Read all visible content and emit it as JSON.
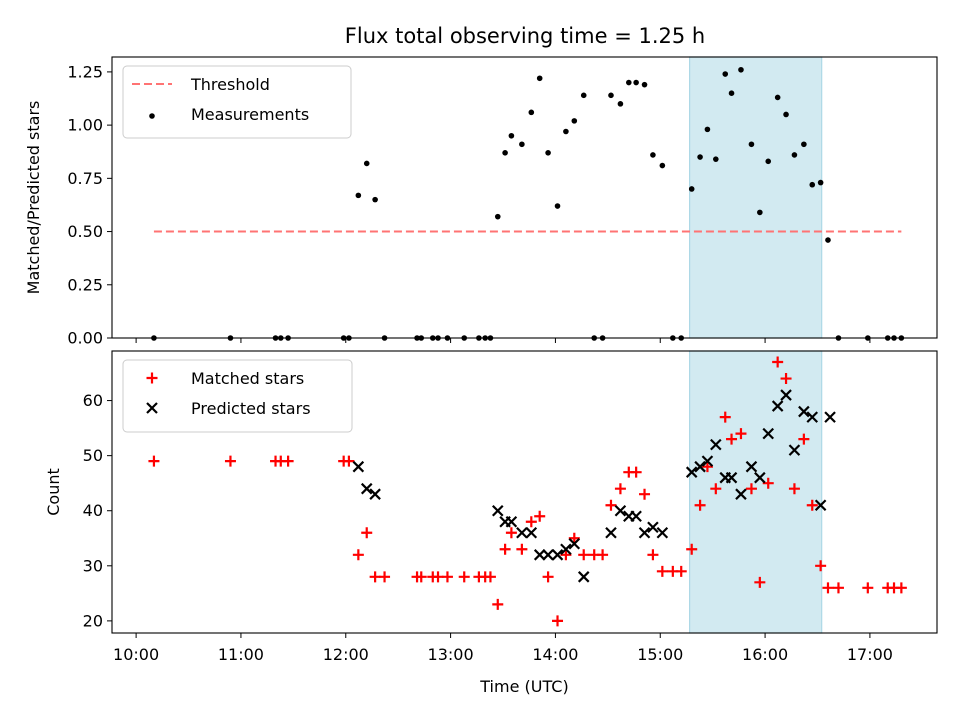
{
  "figure_title": "Flux total observing time = 1.25 h",
  "colors": {
    "threshold": "#ff7373",
    "measurement": "#000000",
    "matched": "#ff0000",
    "predicted": "#000000",
    "highlight": "#add8e6"
  },
  "chart_data": [
    {
      "type": "scatter",
      "title": "Flux total observing time = 1.25 h",
      "xlabel": "",
      "ylabel": "Matched/Predicted stars",
      "xlim": [
        9.77,
        17.64
      ],
      "ylim": [
        0.0,
        1.32
      ],
      "grid": false,
      "legend_position": "top-left",
      "x_ticks": [
        10,
        11,
        12,
        13,
        14,
        15,
        16,
        17
      ],
      "x_tick_labels_shown": false,
      "y_ticks": [
        0.0,
        0.25,
        0.5,
        0.75,
        1.0,
        1.25
      ],
      "y_tick_labels": [
        "0.00",
        "0.25",
        "0.50",
        "0.75",
        "1.00",
        "1.25"
      ],
      "highlight_span": [
        15.28,
        16.54
      ],
      "threshold": {
        "name": "Threshold",
        "value": 0.5,
        "x_range": [
          10.17,
          17.3
        ],
        "style": "dashed"
      },
      "series": [
        {
          "name": "Measurements",
          "marker": "dot",
          "points": [
            [
              10.17,
              0.0
            ],
            [
              10.9,
              0.0
            ],
            [
              11.33,
              0.0
            ],
            [
              11.38,
              0.0
            ],
            [
              11.45,
              0.0
            ],
            [
              11.98,
              0.0
            ],
            [
              12.03,
              0.0
            ],
            [
              12.12,
              0.67
            ],
            [
              12.2,
              0.82
            ],
            [
              12.28,
              0.65
            ],
            [
              12.37,
              0.0
            ],
            [
              12.68,
              0.0
            ],
            [
              12.72,
              0.0
            ],
            [
              12.83,
              0.0
            ],
            [
              12.88,
              0.0
            ],
            [
              12.97,
              0.0
            ],
            [
              13.13,
              0.0
            ],
            [
              13.27,
              0.0
            ],
            [
              13.33,
              0.0
            ],
            [
              13.38,
              0.0
            ],
            [
              13.45,
              0.57
            ],
            [
              13.52,
              0.87
            ],
            [
              13.58,
              0.95
            ],
            [
              13.68,
              0.91
            ],
            [
              13.77,
              1.06
            ],
            [
              13.85,
              1.22
            ],
            [
              13.93,
              0.87
            ],
            [
              14.02,
              0.62
            ],
            [
              14.1,
              0.97
            ],
            [
              14.18,
              1.02
            ],
            [
              14.27,
              1.14
            ],
            [
              14.37,
              0.0
            ],
            [
              14.45,
              0.0
            ],
            [
              14.53,
              1.14
            ],
            [
              14.62,
              1.1
            ],
            [
              14.7,
              1.2
            ],
            [
              14.77,
              1.2
            ],
            [
              14.85,
              1.19
            ],
            [
              14.93,
              0.86
            ],
            [
              15.02,
              0.81
            ],
            [
              15.12,
              0.0
            ],
            [
              15.2,
              0.0
            ],
            [
              15.3,
              0.7
            ],
            [
              15.38,
              0.85
            ],
            [
              15.45,
              0.98
            ],
            [
              15.53,
              0.84
            ],
            [
              15.62,
              1.24
            ],
            [
              15.68,
              1.15
            ],
            [
              15.77,
              1.26
            ],
            [
              15.87,
              0.91
            ],
            [
              15.95,
              0.59
            ],
            [
              16.03,
              0.83
            ],
            [
              16.12,
              1.13
            ],
            [
              16.2,
              1.05
            ],
            [
              16.28,
              0.86
            ],
            [
              16.37,
              0.91
            ],
            [
              16.45,
              0.72
            ],
            [
              16.53,
              0.73
            ],
            [
              16.6,
              0.46
            ],
            [
              16.7,
              0.0
            ],
            [
              16.98,
              0.0
            ],
            [
              17.17,
              0.0
            ],
            [
              17.23,
              0.0
            ],
            [
              17.3,
              0.0
            ]
          ]
        }
      ]
    },
    {
      "type": "scatter",
      "title": "",
      "xlabel": "Time (UTC)",
      "ylabel": "Count",
      "xlim": [
        9.77,
        17.64
      ],
      "ylim": [
        17.8,
        69.0
      ],
      "grid": false,
      "legend_position": "top-left",
      "x_ticks": [
        10,
        11,
        12,
        13,
        14,
        15,
        16,
        17
      ],
      "x_tick_labels": [
        "10:00",
        "11:00",
        "12:00",
        "13:00",
        "14:00",
        "15:00",
        "16:00",
        "17:00"
      ],
      "y_ticks": [
        20,
        30,
        40,
        50,
        60
      ],
      "y_tick_labels": [
        "20",
        "30",
        "40",
        "50",
        "60"
      ],
      "highlight_span": [
        15.28,
        16.54
      ],
      "series": [
        {
          "name": "Matched stars",
          "marker": "plus",
          "points": [
            [
              10.17,
              49
            ],
            [
              10.9,
              49
            ],
            [
              11.33,
              49
            ],
            [
              11.38,
              49
            ],
            [
              11.45,
              49
            ],
            [
              11.98,
              49
            ],
            [
              12.03,
              49
            ],
            [
              12.12,
              32
            ],
            [
              12.2,
              36
            ],
            [
              12.28,
              28
            ],
            [
              12.37,
              28
            ],
            [
              12.68,
              28
            ],
            [
              12.72,
              28
            ],
            [
              12.83,
              28
            ],
            [
              12.88,
              28
            ],
            [
              12.97,
              28
            ],
            [
              13.13,
              28
            ],
            [
              13.27,
              28
            ],
            [
              13.33,
              28
            ],
            [
              13.38,
              28
            ],
            [
              13.45,
              23
            ],
            [
              13.52,
              33
            ],
            [
              13.58,
              36
            ],
            [
              13.68,
              33
            ],
            [
              13.77,
              38
            ],
            [
              13.85,
              39
            ],
            [
              13.93,
              28
            ],
            [
              14.02,
              20
            ],
            [
              14.1,
              32
            ],
            [
              14.18,
              35
            ],
            [
              14.27,
              32
            ],
            [
              14.37,
              32
            ],
            [
              14.45,
              32
            ],
            [
              14.53,
              41
            ],
            [
              14.62,
              44
            ],
            [
              14.7,
              47
            ],
            [
              14.77,
              47
            ],
            [
              14.85,
              43
            ],
            [
              14.93,
              32
            ],
            [
              15.02,
              29
            ],
            [
              15.12,
              29
            ],
            [
              15.2,
              29
            ],
            [
              15.3,
              33
            ],
            [
              15.38,
              41
            ],
            [
              15.45,
              48
            ],
            [
              15.53,
              44
            ],
            [
              15.62,
              57
            ],
            [
              15.68,
              53
            ],
            [
              15.77,
              54
            ],
            [
              15.87,
              44
            ],
            [
              15.95,
              27
            ],
            [
              16.03,
              45
            ],
            [
              16.12,
              67
            ],
            [
              16.2,
              64
            ],
            [
              16.28,
              44
            ],
            [
              16.37,
              53
            ],
            [
              16.45,
              41
            ],
            [
              16.53,
              30
            ],
            [
              16.6,
              26
            ],
            [
              16.7,
              26
            ],
            [
              16.98,
              26
            ],
            [
              17.17,
              26
            ],
            [
              17.23,
              26
            ],
            [
              17.3,
              26
            ]
          ]
        },
        {
          "name": "Predicted stars",
          "marker": "x",
          "points": [
            [
              12.12,
              48
            ],
            [
              12.2,
              44
            ],
            [
              12.28,
              43
            ],
            [
              13.45,
              40
            ],
            [
              13.52,
              38
            ],
            [
              13.58,
              38
            ],
            [
              13.68,
              36
            ],
            [
              13.77,
              36
            ],
            [
              13.85,
              32
            ],
            [
              13.93,
              32
            ],
            [
              14.02,
              32
            ],
            [
              14.1,
              33
            ],
            [
              14.18,
              34
            ],
            [
              14.27,
              28
            ],
            [
              14.53,
              36
            ],
            [
              14.62,
              40
            ],
            [
              14.7,
              39
            ],
            [
              14.77,
              39
            ],
            [
              14.85,
              36
            ],
            [
              14.93,
              37
            ],
            [
              15.02,
              36
            ],
            [
              15.3,
              47
            ],
            [
              15.38,
              48
            ],
            [
              15.45,
              49
            ],
            [
              15.53,
              52
            ],
            [
              15.62,
              46
            ],
            [
              15.68,
              46
            ],
            [
              15.77,
              43
            ],
            [
              15.87,
              48
            ],
            [
              15.95,
              46
            ],
            [
              16.03,
              54
            ],
            [
              16.12,
              59
            ],
            [
              16.2,
              61
            ],
            [
              16.28,
              51
            ],
            [
              16.37,
              58
            ],
            [
              16.45,
              57
            ],
            [
              16.53,
              41
            ],
            [
              16.62,
              57
            ]
          ]
        }
      ]
    }
  ]
}
